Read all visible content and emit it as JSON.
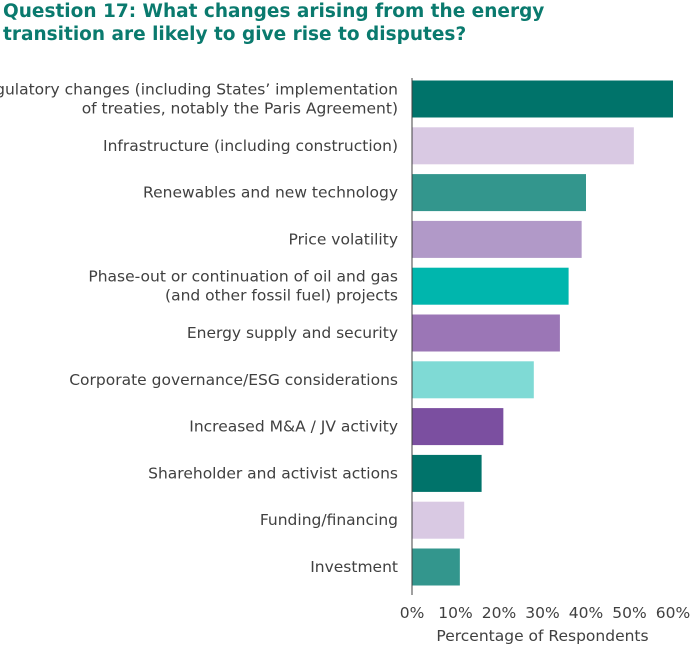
{
  "chart_data": {
    "type": "bar",
    "orientation": "horizontal",
    "title": "Question 17: What changes arising from the energy transition are likely to give rise to disputes?",
    "xlabel": "Percentage of Respondents",
    "ylabel": "",
    "xlim": [
      0,
      60
    ],
    "xticks": [
      "0%",
      "10%",
      "20%",
      "30%",
      "40%",
      "50%",
      "60%"
    ],
    "grid": false,
    "categories": [
      [
        "Regulatory changes (including States’ implementation",
        "of treaties, notably the Paris Agreement)"
      ],
      [
        "Infrastructure (including construction)"
      ],
      [
        "Renewables and new technology"
      ],
      [
        "Price volatility"
      ],
      [
        "Phase-out or continuation of oil and gas",
        "(and other fossil fuel) projects"
      ],
      [
        "Energy supply and security"
      ],
      [
        "Corporate governance/ESG considerations"
      ],
      [
        "Increased M&A / JV activity"
      ],
      [
        "Shareholder and activist actions"
      ],
      [
        "Funding/financing"
      ],
      [
        "Investment"
      ]
    ],
    "values": [
      60,
      51,
      40,
      39,
      36,
      34,
      28,
      21,
      16,
      12,
      11
    ],
    "colors": [
      "#00736a",
      "#d9c9e3",
      "#33968d",
      "#b199c8",
      "#00b6ad",
      "#9b76b6",
      "#7fdad5",
      "#7b4fa0",
      "#00736a",
      "#d9c9e3",
      "#33968d"
    ]
  }
}
